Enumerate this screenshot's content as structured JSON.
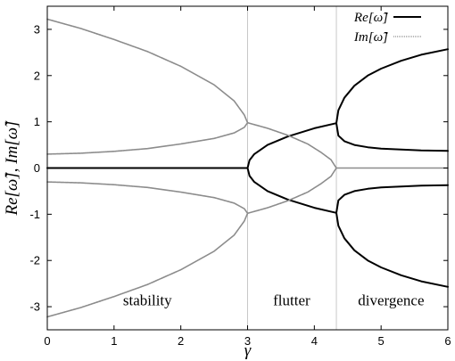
{
  "chart_data": {
    "type": "line",
    "xlabel": "γ",
    "ylabel": "Re[ω̃], Im[ω̃]",
    "xlim": [
      0,
      6
    ],
    "ylim": [
      -3.5,
      3.5
    ],
    "xticks": [
      0,
      1,
      2,
      3,
      4,
      5,
      6
    ],
    "yticks": [
      -3,
      -2,
      -1,
      0,
      1,
      2,
      3
    ],
    "grid": false,
    "legend_position": "top-right",
    "critical_gammas": [
      3.0,
      4.33
    ],
    "regions": [
      {
        "label": "stability",
        "x": 1.5
      },
      {
        "label": "flutter",
        "x": 3.66
      },
      {
        "label": "divergence",
        "x": 5.15
      }
    ],
    "series": [
      {
        "name": "Re[ω̃]",
        "color": "#000000",
        "style": "solid",
        "curves": [
          {
            "x": [
              0,
              3.0
            ],
            "y": [
              0,
              0
            ]
          },
          {
            "x": [
              3.0,
              3.03,
              3.1,
              3.3,
              3.6,
              4.0,
              4.33
            ],
            "y": [
              0,
              0.17,
              0.3,
              0.5,
              0.68,
              0.86,
              0.97
            ]
          },
          {
            "x": [
              3.0,
              3.03,
              3.1,
              3.3,
              3.6,
              4.0,
              4.33
            ],
            "y": [
              0,
              -0.17,
              -0.3,
              -0.5,
              -0.68,
              -0.86,
              -0.97
            ]
          },
          {
            "x": [
              4.33,
              4.36,
              4.45,
              4.6,
              4.8,
              5.0,
              5.3,
              5.6,
              6.0
            ],
            "y": [
              0.97,
              1.25,
              1.52,
              1.78,
              2.0,
              2.15,
              2.32,
              2.45,
              2.57
            ]
          },
          {
            "x": [
              4.33,
              4.36,
              4.45,
              4.6,
              4.8,
              5.0,
              5.3,
              5.6,
              6.0
            ],
            "y": [
              0.97,
              0.7,
              0.58,
              0.5,
              0.45,
              0.42,
              0.4,
              0.38,
              0.37
            ]
          },
          {
            "x": [
              4.33,
              4.36,
              4.45,
              4.6,
              4.8,
              5.0,
              5.3,
              5.6,
              6.0
            ],
            "y": [
              -0.97,
              -1.25,
              -1.52,
              -1.78,
              -2.0,
              -2.15,
              -2.32,
              -2.45,
              -2.57
            ]
          },
          {
            "x": [
              4.33,
              4.36,
              4.45,
              4.6,
              4.8,
              5.0,
              5.3,
              5.6,
              6.0
            ],
            "y": [
              -0.97,
              -0.7,
              -0.58,
              -0.5,
              -0.45,
              -0.42,
              -0.4,
              -0.38,
              -0.37
            ]
          }
        ]
      },
      {
        "name": "Im[ω̃]",
        "color": "#8c8c8c",
        "style": "dotted",
        "curves": [
          {
            "x": [
              0,
              0.5,
              1.0,
              1.5,
              2.0,
              2.5,
              2.8,
              2.95,
              3.0
            ],
            "y": [
              3.22,
              3.02,
              2.78,
              2.52,
              2.2,
              1.8,
              1.45,
              1.15,
              0.98
            ]
          },
          {
            "x": [
              0,
              0.5,
              1.0,
              1.5,
              2.0,
              2.5,
              2.8,
              2.95,
              3.0
            ],
            "y": [
              0.3,
              0.32,
              0.36,
              0.42,
              0.52,
              0.64,
              0.76,
              0.88,
              0.98
            ]
          },
          {
            "x": [
              0,
              0.5,
              1.0,
              1.5,
              2.0,
              2.5,
              2.8,
              2.95,
              3.0
            ],
            "y": [
              -3.22,
              -3.02,
              -2.78,
              -2.52,
              -2.2,
              -1.8,
              -1.45,
              -1.15,
              -0.98
            ]
          },
          {
            "x": [
              0,
              0.5,
              1.0,
              1.5,
              2.0,
              2.5,
              2.8,
              2.95,
              3.0
            ],
            "y": [
              -0.3,
              -0.32,
              -0.36,
              -0.42,
              -0.52,
              -0.64,
              -0.76,
              -0.88,
              -0.98
            ]
          },
          {
            "x": [
              3.0,
              3.3,
              3.6,
              3.9,
              4.1,
              4.25,
              4.33
            ],
            "y": [
              0.98,
              0.86,
              0.71,
              0.52,
              0.34,
              0.18,
              0
            ]
          },
          {
            "x": [
              3.0,
              3.3,
              3.6,
              3.9,
              4.1,
              4.25,
              4.33
            ],
            "y": [
              -0.98,
              -0.86,
              -0.71,
              -0.52,
              -0.34,
              -0.18,
              0
            ]
          },
          {
            "x": [
              4.33,
              6.0
            ],
            "y": [
              0,
              0
            ]
          }
        ]
      }
    ]
  }
}
